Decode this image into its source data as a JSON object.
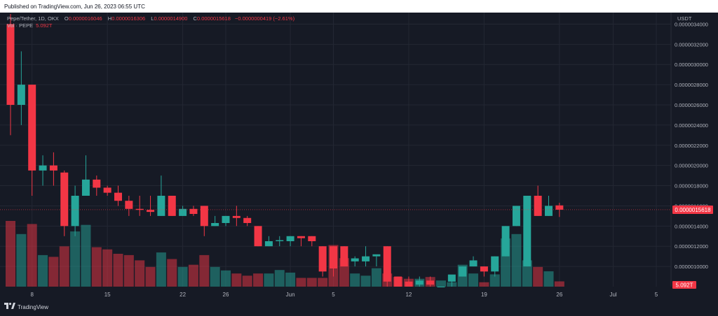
{
  "header": {
    "published": "Published on TradingView.com, Jun 26, 2023 06:55 UTC"
  },
  "legend": {
    "symbol": "Pepe/Tether, 1D, OKX",
    "o_label": "O",
    "o_value": "0.0000016046",
    "h_label": "H",
    "h_value": "0.0000016306",
    "l_label": "L",
    "l_value": "0.0000014900",
    "c_label": "C",
    "c_value": "0.0000015618",
    "change": "−0.0000000419 (−2.61%)",
    "vol_label": "Vol · PEPE",
    "vol_value": "5.092T"
  },
  "axis": {
    "currency": "USDT"
  },
  "footer": {
    "brand": "TradingView",
    "logo_icon": "tradingview-logo-icon"
  },
  "colors": {
    "up": "#26a69a",
    "down": "#f23645",
    "background": "#161a25",
    "text": "#b2b5be"
  },
  "chart_data": {
    "type": "candlestick",
    "title": "Pepe/Tether, 1D, OKX",
    "ylabel": "USDT",
    "ylim": [
      8e-07,
      3.5e-06
    ],
    "y_ticks": [
      "0.0000010000",
      "0.0000012000",
      "0.0000014000",
      "0.0000016000",
      "0.0000018000",
      "0.0000020000",
      "0.0000022000",
      "0.0000024000",
      "0.0000026000",
      "0.0000028000",
      "0.0000030000",
      "0.0000032000",
      "0.0000034000"
    ],
    "y_tick_values": [
      1e-06,
      1.2e-06,
      1.4e-06,
      1.6e-06,
      1.8e-06,
      2e-06,
      2.2e-06,
      2.4e-06,
      2.6e-06,
      2.8e-06,
      3e-06,
      3.2e-06,
      3.4e-06
    ],
    "x_ticks": [
      {
        "label": "8",
        "index": 2
      },
      {
        "label": "15",
        "index": 9
      },
      {
        "label": "22",
        "index": 16
      },
      {
        "label": "26",
        "index": 20
      },
      {
        "label": "Jun",
        "index": 26
      },
      {
        "label": "5",
        "index": 30
      },
      {
        "label": "12",
        "index": 37
      },
      {
        "label": "19",
        "index": 44
      },
      {
        "label": "26",
        "index": 51
      },
      {
        "label": "Jul",
        "index": 56
      },
      {
        "label": "5",
        "index": 60
      }
    ],
    "last_price": 1.5618e-06,
    "last_price_label": "0.0000015618",
    "last_volume_label": "5.092T",
    "candles": [
      {
        "o": 3.4e-06,
        "h": 3.5e-06,
        "l": 2.3e-06,
        "c": 2.6e-06,
        "v": 1.5
      },
      {
        "o": 2.6e-06,
        "h": 3.13e-06,
        "l": 2.4e-06,
        "c": 2.8e-06,
        "v": 1.2
      },
      {
        "o": 2.8e-06,
        "h": 2.8e-06,
        "l": 1.7e-06,
        "c": 1.95e-06,
        "v": 1.43
      },
      {
        "o": 1.95e-06,
        "h": 2.1e-06,
        "l": 1.8e-06,
        "c": 2e-06,
        "v": 0.72
      },
      {
        "o": 2e-06,
        "h": 2.13e-06,
        "l": 1.8e-06,
        "c": 1.95e-06,
        "v": 0.68
      },
      {
        "o": 1.93e-06,
        "h": 1.95e-06,
        "l": 1.3e-06,
        "c": 1.4e-06,
        "v": 0.92
      },
      {
        "o": 1.4e-06,
        "h": 1.8e-06,
        "l": 1.3e-06,
        "c": 1.7e-06,
        "v": 1.26
      },
      {
        "o": 1.7e-06,
        "h": 2.1e-06,
        "l": 1.7e-06,
        "c": 1.86e-06,
        "v": 1.41
      },
      {
        "o": 1.86e-06,
        "h": 1.9e-06,
        "l": 1.7e-06,
        "c": 1.78e-06,
        "v": 0.9
      },
      {
        "o": 1.78e-06,
        "h": 1.8e-06,
        "l": 1.7e-06,
        "c": 1.73e-06,
        "v": 0.85
      },
      {
        "o": 1.73e-06,
        "h": 1.8e-06,
        "l": 1.6e-06,
        "c": 1.65e-06,
        "v": 0.75
      },
      {
        "o": 1.65e-06,
        "h": 1.7e-06,
        "l": 1.5e-06,
        "c": 1.57e-06,
        "v": 0.72
      },
      {
        "o": 1.57e-06,
        "h": 1.7e-06,
        "l": 1.5e-06,
        "c": 1.56e-06,
        "v": 0.6
      },
      {
        "o": 1.56e-06,
        "h": 1.7e-06,
        "l": 1.5e-06,
        "c": 1.54e-06,
        "v": 0.45
      },
      {
        "o": 1.5e-06,
        "h": 1.9e-06,
        "l": 1.5e-06,
        "c": 1.7e-06,
        "v": 0.78
      },
      {
        "o": 1.7e-06,
        "h": 1.7e-06,
        "l": 1.5e-06,
        "c": 1.5e-06,
        "v": 0.63
      },
      {
        "o": 1.5e-06,
        "h": 1.6e-06,
        "l": 1.5e-06,
        "c": 1.57e-06,
        "v": 0.45
      },
      {
        "o": 1.57e-06,
        "h": 1.6e-06,
        "l": 1.5e-06,
        "c": 1.52e-06,
        "v": 0.5
      },
      {
        "o": 1.6e-06,
        "h": 1.6e-06,
        "l": 1.3e-06,
        "c": 1.4e-06,
        "v": 0.72
      },
      {
        "o": 1.4e-06,
        "h": 1.5e-06,
        "l": 1.4e-06,
        "c": 1.43e-06,
        "v": 0.45
      },
      {
        "o": 1.43e-06,
        "h": 1.5e-06,
        "l": 1.4e-06,
        "c": 1.5e-06,
        "v": 0.37
      },
      {
        "o": 1.5e-06,
        "h": 1.6e-06,
        "l": 1.4e-06,
        "c": 1.48e-06,
        "v": 0.3
      },
      {
        "o": 1.48e-06,
        "h": 1.5e-06,
        "l": 1.4e-06,
        "c": 1.43e-06,
        "v": 0.25
      },
      {
        "o": 1.4e-06,
        "h": 1.4e-06,
        "l": 1.2e-06,
        "c": 1.2e-06,
        "v": 0.3
      },
      {
        "o": 1.2e-06,
        "h": 1.3e-06,
        "l": 1.2e-06,
        "c": 1.25e-06,
        "v": 0.3
      },
      {
        "o": 1.25e-06,
        "h": 1.3e-06,
        "l": 1.2e-06,
        "c": 1.26e-06,
        "v": 0.38
      },
      {
        "o": 1.25e-06,
        "h": 1.3e-06,
        "l": 1.2e-06,
        "c": 1.3e-06,
        "v": 0.32
      },
      {
        "o": 1.3e-06,
        "h": 1.3e-06,
        "l": 1.2e-06,
        "c": 1.28e-06,
        "v": 0.2
      },
      {
        "o": 1.3e-06,
        "h": 1.3e-06,
        "l": 1.2e-06,
        "c": 1.25e-06,
        "v": 0.2
      },
      {
        "o": 1.2e-06,
        "h": 1.2e-06,
        "l": 9e-07,
        "c": 9.5e-07,
        "v": 0.2
      },
      {
        "o": 1.2e-06,
        "h": 1.2e-06,
        "l": 9e-07,
        "c": 9.8e-07,
        "v": 0.95
      },
      {
        "o": 1.2e-06,
        "h": 1.2e-06,
        "l": 1e-06,
        "c": 1e-06,
        "v": 0.65
      },
      {
        "o": 1.05e-06,
        "h": 1.1e-06,
        "l": 1e-06,
        "c": 1.08e-06,
        "v": 0.3
      },
      {
        "o": 1.05e-06,
        "h": 1.2e-06,
        "l": 1e-06,
        "c": 1.1e-06,
        "v": 0.25
      },
      {
        "o": 1.1e-06,
        "h": 1.1e-06,
        "l": 1e-06,
        "c": 1.12e-06,
        "v": 0.42
      },
      {
        "o": 1.2e-06,
        "h": 1.2e-06,
        "l": 8e-07,
        "c": 8.5e-07,
        "v": 0.3
      },
      {
        "o": 9e-07,
        "h": 9e-07,
        "l": 8e-07,
        "c": 8e-07,
        "v": 0.22
      },
      {
        "o": 8.5e-07,
        "h": 9e-07,
        "l": 8e-07,
        "c": 8e-07,
        "v": 0.18
      },
      {
        "o": 8.2e-07,
        "h": 9e-07,
        "l": 8e-07,
        "c": 8.6e-07,
        "v": 0.18
      },
      {
        "o": 8.6e-07,
        "h": 9e-07,
        "l": 8e-07,
        "c": 8.2e-07,
        "v": 0.22
      },
      {
        "o": 8e-07,
        "h": 8e-07,
        "l": 8e-07,
        "c": 8e-07,
        "v": 0.14
      },
      {
        "o": 8.5e-07,
        "h": 9e-07,
        "l": 8e-07,
        "c": 9.2e-07,
        "v": 0.1
      },
      {
        "o": 9e-07,
        "h": 1e-06,
        "l": 9e-07,
        "c": 1e-06,
        "v": 0.5
      },
      {
        "o": 1e-06,
        "h": 1.1e-06,
        "l": 1e-06,
        "c": 1.06e-06,
        "v": 0.3
      },
      {
        "o": 1e-06,
        "h": 1e-06,
        "l": 9e-07,
        "c": 9.5e-07,
        "v": 0.1
      },
      {
        "o": 9.5e-07,
        "h": 1.1e-06,
        "l": 9e-07,
        "c": 1.1e-06,
        "v": 0.28
      },
      {
        "o": 1.1e-06,
        "h": 1.4e-06,
        "l": 1.1e-06,
        "c": 1.4e-06,
        "v": 1.1
      },
      {
        "o": 1.4e-06,
        "h": 1.6e-06,
        "l": 1.4e-06,
        "c": 1.6e-06,
        "v": 1.2
      },
      {
        "o": 1e-06,
        "h": 1.7e-06,
        "l": 1e-06,
        "c": 1.7e-06,
        "v": 0.6
      },
      {
        "o": 1.7e-06,
        "h": 1.8e-06,
        "l": 1.5e-06,
        "c": 1.5e-06,
        "v": 0.45
      },
      {
        "o": 1.5e-06,
        "h": 1.7e-06,
        "l": 1.5e-06,
        "c": 1.6e-06,
        "v": 0.35
      },
      {
        "o": 1.6046e-06,
        "h": 1.6306e-06,
        "l": 1.49e-06,
        "c": 1.5618e-06,
        "v": 0.12
      }
    ]
  }
}
